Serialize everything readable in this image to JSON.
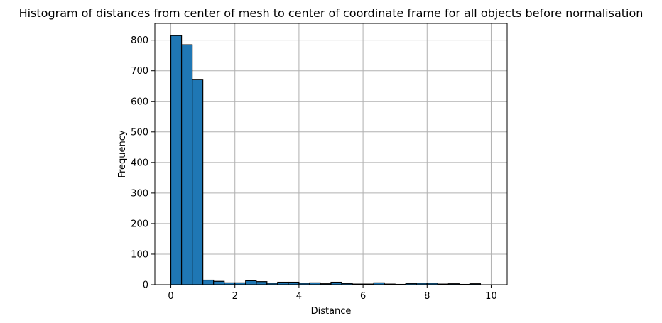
{
  "chart_data": {
    "type": "bar",
    "title": "Histogram of distances from center of mesh to center of coordinate frame for all objects before normalisation",
    "xlabel": "Distance",
    "ylabel": "Frequency",
    "xlim": [
      -0.5,
      10.5
    ],
    "ylim": [
      0,
      855
    ],
    "grid": true,
    "bar_color": "#1f77b4",
    "edge_color": "#000000",
    "x_ticks": [
      0,
      2,
      4,
      6,
      8,
      10
    ],
    "y_ticks": [
      0,
      100,
      200,
      300,
      400,
      500,
      600,
      700,
      800
    ],
    "bin_edges": [
      0,
      0.3333,
      0.6667,
      1.0,
      1.3333,
      1.6667,
      2.0,
      2.3333,
      2.6667,
      3.0,
      3.3333,
      3.6667,
      4.0,
      4.3333,
      4.6667,
      5.0,
      5.3333,
      5.6667,
      6.0,
      6.3333,
      6.6667,
      7.0,
      7.3333,
      7.6667,
      8.0,
      8.3333,
      8.6667,
      9.0,
      9.3333,
      9.6667,
      10.0
    ],
    "values": [
      815,
      785,
      672,
      15,
      11,
      6,
      6,
      13,
      10,
      5,
      8,
      8,
      5,
      6,
      3,
      8,
      4,
      2,
      2,
      6,
      2,
      1,
      4,
      5,
      5,
      2,
      3,
      1,
      3,
      0
    ]
  }
}
